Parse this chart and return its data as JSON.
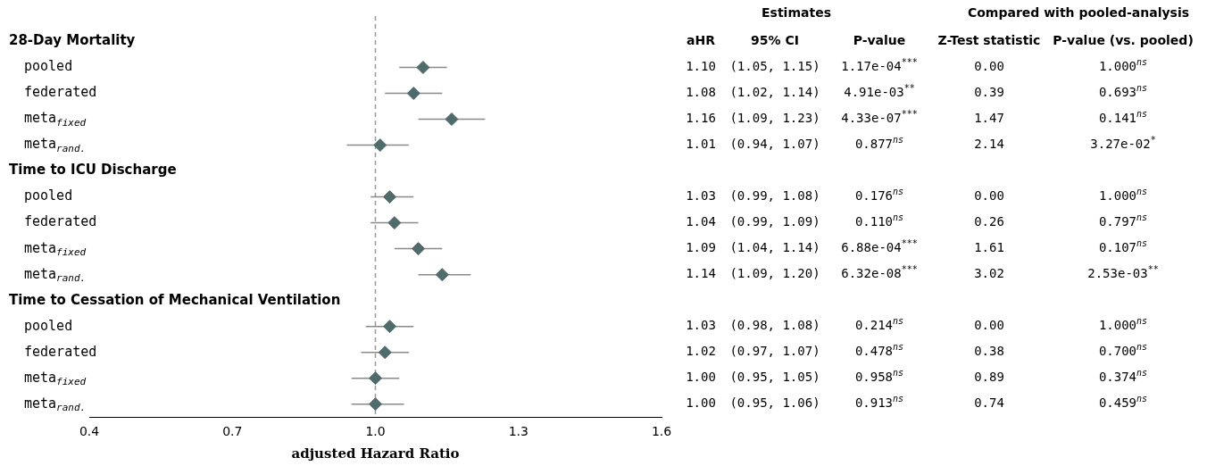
{
  "chart_data": {
    "type": "scatter",
    "orientation": "horizontal",
    "xlabel": "adjusted Hazard Ratio",
    "categories": [
      "28-Day Mortality",
      "pooled",
      "federated",
      "meta$_{fixed}$",
      "meta$_{rand.}$",
      "Time to ICU Discharge",
      "pooled",
      "federated",
      "meta$_{fixed}$",
      "meta$_{rand.}$",
      "Time to Cessation of Mechanical Ventilation",
      "pooled",
      "federated",
      "meta$_{fixed}$",
      "meta$_{rand.}$"
    ],
    "values": [
      null,
      1.1,
      1.08,
      1.16,
      1.01,
      null,
      1.03,
      1.04,
      1.09,
      1.14,
      null,
      1.03,
      1.02,
      1.0,
      1.0
    ],
    "errors": [
      null,
      [
        1.05,
        1.15
      ],
      [
        1.02,
        1.14
      ],
      [
        1.09,
        1.23
      ],
      [
        0.94,
        1.07
      ],
      null,
      [
        0.99,
        1.08
      ],
      [
        0.99,
        1.09
      ],
      [
        1.04,
        1.14
      ],
      [
        1.09,
        1.2
      ],
      null,
      [
        0.98,
        1.08
      ],
      [
        0.97,
        1.07
      ],
      [
        0.95,
        1.05
      ],
      [
        0.95,
        1.06
      ]
    ],
    "value_labels": [
      null,
      "1.10",
      "1.08",
      "1.16",
      "1.01",
      null,
      "1.03",
      "1.04",
      "1.09",
      "1.14",
      null,
      "1.03",
      "1.02",
      "1.00",
      "1.00"
    ],
    "color": "#4f6b6b",
    "marker": "diamond",
    "xlim": [
      0.4,
      1.6
    ],
    "xticks": [
      0.4,
      0.7,
      {
        "value": 1,
        "label": "1.0"
      },
      1.3,
      1.6
    ],
    "ref_lines": [
      {
        "axis": "x",
        "value": 1,
        "color": "#999999",
        "line_style": "dashed"
      }
    ],
    "annotations": [
      "Estimates",
      "Compared with pooled-analysis",
      "aHR",
      "95% CI",
      "P-value",
      "Z-Test statistic",
      "P-value (vs. pooled)",
      "(1.05, 1.15)",
      "1.17e-04$^{***}$",
      "0.00",
      "1.000$^{ns}$",
      "(1.02, 1.14)",
      "4.91e-03$^{**}$",
      "0.39",
      "0.693$^{ns}$",
      "(1.09, 1.23)",
      "4.33e-07$^{***}$",
      "1.47",
      "0.141$^{ns}$",
      "(0.94, 1.07)",
      "0.877$^{ns}$",
      "2.14",
      "3.27e-02$^{*}$",
      "(0.99, 1.08)",
      "0.176$^{ns}$",
      "0.00",
      "1.000$^{ns}$",
      "(0.99, 1.09)",
      "0.110$^{ns}$",
      "0.26",
      "0.797$^{ns}$",
      "(1.04, 1.14)",
      "6.88e-04$^{***}$",
      "1.61",
      "0.107$^{ns}$",
      "(1.09, 1.20)",
      "6.32e-08$^{***}$",
      "3.02",
      "2.53e-03$^{**}$",
      "(0.98, 1.08)",
      "0.214$^{ns}$",
      "0.00",
      "1.000$^{ns}$",
      "(0.97, 1.07)",
      "0.478$^{ns}$",
      "0.38",
      "0.700$^{ns}$",
      "(0.95, 1.05)",
      "0.958$^{ns}$",
      "0.89",
      "0.374$^{ns}$",
      "(0.95, 1.06)",
      "0.913$^{ns}$",
      "0.74",
      "0.459$^{ns}$"
    ]
  }
}
